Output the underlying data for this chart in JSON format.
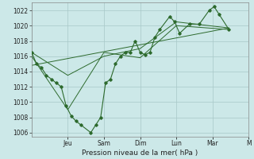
{
  "bg_color": "#cce8e8",
  "grid_color": "#a8c8c8",
  "line_color": "#2d6a2d",
  "xlabel": "Pression niveau de la mer( hPa )",
  "ylim": [
    1005.5,
    1023.0
  ],
  "yticks": [
    1006,
    1008,
    1010,
    1012,
    1014,
    1016,
    1018,
    1020,
    1022
  ],
  "xlim": [
    0,
    22
  ],
  "xtick_positions": [
    3.67,
    7.33,
    11.0,
    14.67,
    18.33,
    22.0
  ],
  "xtick_labels": [
    "Jeu",
    "Sam",
    "Dim",
    "Lun",
    "Mar",
    "M"
  ],
  "vgrid_positions": [
    0,
    3.67,
    7.33,
    11.0,
    14.67,
    18.33,
    22.0
  ],
  "line1_x": [
    0.0,
    0.5,
    1.0,
    1.5,
    2.0,
    2.5,
    3.0,
    3.5,
    4.0,
    4.5,
    5.0,
    6.0,
    6.5,
    7.0,
    7.5,
    8.0,
    8.5,
    9.0,
    9.5,
    10.0,
    10.5,
    11.0,
    11.5,
    12.0,
    12.5,
    13.0,
    14.0,
    14.5,
    15.0,
    16.0,
    17.0,
    18.0,
    18.5,
    19.0,
    20.0
  ],
  "line1_y": [
    1016.5,
    1015.0,
    1014.5,
    1013.5,
    1013.0,
    1012.5,
    1012.0,
    1009.5,
    1008.2,
    1007.5,
    1007.0,
    1006.0,
    1007.0,
    1008.0,
    1012.5,
    1013.0,
    1015.0,
    1016.0,
    1016.5,
    1016.5,
    1018.0,
    1016.5,
    1016.2,
    1016.5,
    1018.5,
    1019.5,
    1021.2,
    1020.5,
    1019.0,
    1020.2,
    1020.2,
    1022.0,
    1022.5,
    1021.5,
    1019.5
  ],
  "line2_x": [
    0.0,
    3.67,
    7.33,
    11.0,
    14.67,
    20.0
  ],
  "line2_y": [
    1016.5,
    1013.5,
    1016.0,
    1017.0,
    1020.5,
    1019.7
  ],
  "line3_x": [
    0.0,
    3.67,
    7.33,
    11.0,
    14.67,
    20.0
  ],
  "line3_y": [
    1016.0,
    1009.0,
    1016.5,
    1015.8,
    1020.0,
    1019.5
  ],
  "line4_x": [
    0.0,
    20.0
  ],
  "line4_y": [
    1014.8,
    1019.7
  ]
}
